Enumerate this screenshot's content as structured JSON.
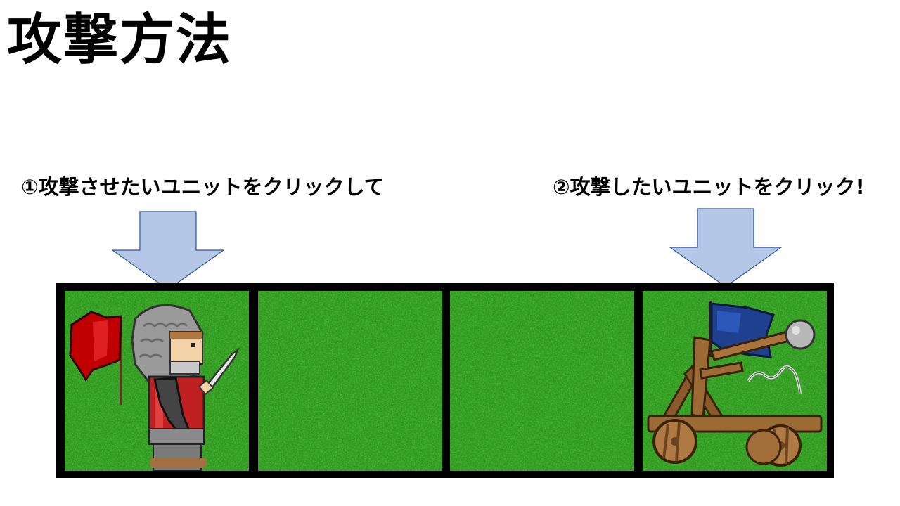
{
  "title": "攻撃方法",
  "steps": [
    {
      "label": "①攻撃させたいユニットをクリックして"
    },
    {
      "label": "②攻撃したいユニットをクリック!"
    }
  ],
  "colors": {
    "arrow_fill": "#b4c7e7",
    "arrow_stroke": "#2f5597",
    "grass": "#2f9a1e",
    "board_border": "#000000",
    "ally_flag": "#c00000",
    "enemy_flag": "#1f3f8f"
  },
  "board": {
    "tiles": [
      {
        "terrain": "grass",
        "unit": "knight-red-flag"
      },
      {
        "terrain": "grass",
        "unit": ""
      },
      {
        "terrain": "grass",
        "unit": ""
      },
      {
        "terrain": "grass",
        "unit": "catapult-blue-flag"
      }
    ]
  }
}
